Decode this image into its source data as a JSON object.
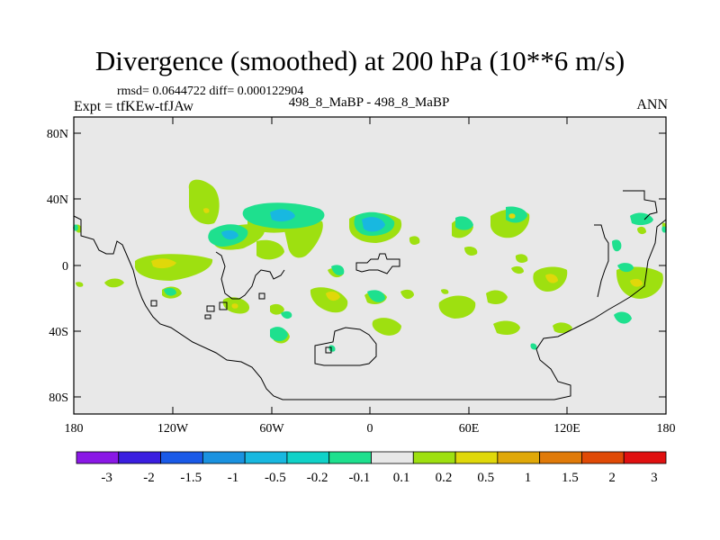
{
  "title": "Divergence (smoothed) at 200 hPa (10**6 m/s)",
  "stats": "rmsd= 0.0644722 diff= 0.000122904",
  "experiment": "Expt = tfKEw-tfJAw",
  "case_label": "498_8_MaBP - 498_8_MaBP",
  "season": "ANN",
  "y_ticks": [
    "80N",
    "40N",
    "0",
    "40S",
    "80S"
  ],
  "x_ticks": [
    "180",
    "120W",
    "60W",
    "0",
    "60E",
    "120E",
    "180"
  ],
  "colorbar": {
    "labels": [
      "-3",
      "-2",
      "-1.5",
      "-1",
      "-0.5",
      "-0.2",
      "-0.1",
      "0.1",
      "0.2",
      "0.5",
      "1",
      "1.5",
      "2",
      "3"
    ],
    "colors": [
      "#8a18e6",
      "#3a1ee0",
      "#1a5ae8",
      "#1a92e0",
      "#18b8e0",
      "#10d2c8",
      "#1ee08e",
      "#e8e8e8",
      "#9ee010",
      "#e0d80a",
      "#e0a808",
      "#e07a08",
      "#e04a06",
      "#e01010"
    ]
  },
  "background_color": "#e8e8e8"
}
